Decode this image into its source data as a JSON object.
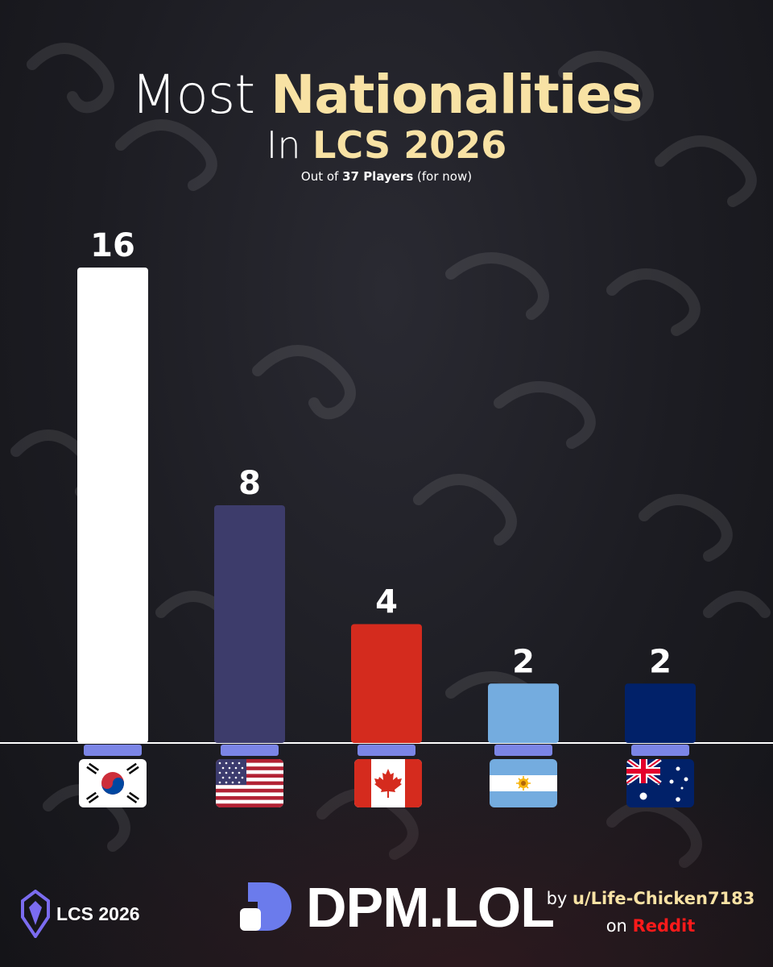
{
  "title": {
    "line1_light": "Most",
    "line1_bold": "Nationalities",
    "line2_light": "In",
    "line2_bold": "LCS 2026",
    "subtitle_prefix": "Out of",
    "subtitle_bold": "37 Players",
    "subtitle_suffix": "(for now)"
  },
  "chart_data": {
    "type": "bar",
    "categories": [
      "South Korea",
      "United States",
      "Canada",
      "Argentina",
      "Australia"
    ],
    "values": [
      16,
      8,
      4,
      2,
      2
    ],
    "data_labels": [
      "16",
      "8",
      "4",
      "2",
      "2"
    ],
    "bar_colors": [
      "#ffffff",
      "#3d3c6b",
      "#d42b1e",
      "#74acdf",
      "#012169"
    ],
    "ylim": [
      0,
      16
    ],
    "grid": false,
    "legend": "none",
    "title": "Most Nationalities In LCS 2026"
  },
  "flags": [
    "korea-flag",
    "usa-flag",
    "canada-flag",
    "argentina-flag",
    "australia-flag"
  ],
  "footer": {
    "league_label": "LCS 2026",
    "brand": "DPM.LOL",
    "credit_by": "by",
    "credit_user": "u/Life-Chicken7183",
    "credit_on": "on",
    "credit_site": "Reddit"
  },
  "colors": {
    "accent_gold": "#f8e2a4",
    "connector": "#7b85e6",
    "reddit_red": "#ff1a1a",
    "background": "#1c1c22"
  }
}
